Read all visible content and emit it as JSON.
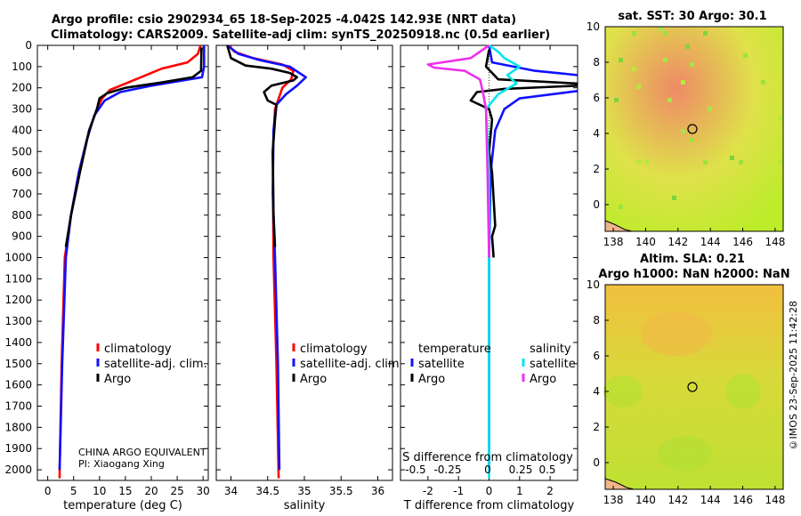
{
  "header": {
    "title_line1": "Argo profile: csio 2902934_65 18-Sep-2025 -4.042S 142.93E (NRT data)",
    "title_line2": "Climatology: CARS2009. Satellite-adj clim: synTS_20250918.nc (0.5d earlier)"
  },
  "sst_map": {
    "title": "sat. SST: 30 Argo: 30.1",
    "xticks": [
      "138",
      "140",
      "142",
      "144",
      "146",
      "148"
    ],
    "yticks": [
      "10",
      "8",
      "6",
      "4",
      "2",
      "0"
    ]
  },
  "sla_map": {
    "title_line1": "Altim. SLA: 0.21",
    "title_line2": "Argo h1000: NaN h2000: NaN",
    "xticks": [
      "138",
      "140",
      "142",
      "144",
      "146",
      "148"
    ],
    "yticks": [
      "10",
      "8",
      "6",
      "4",
      "2",
      "0"
    ]
  },
  "footer": {
    "credit": "©IMOS 23-Sep-2025 11:42:28"
  },
  "colors": {
    "climatology": "#ff0000",
    "satellite": "#1010ff",
    "argo": "#000000",
    "sal_sat": "#00e5ee",
    "sal_argo": "#ee30ee"
  },
  "chart_data": [
    {
      "type": "line",
      "name": "temperature-profile",
      "xlabel": "temperature (deg C)",
      "xlim": [
        -2,
        31
      ],
      "ylim": [
        2050,
        0
      ],
      "xticks": [
        0,
        5,
        10,
        15,
        20,
        25,
        30
      ],
      "yticks": [
        0,
        100,
        200,
        300,
        400,
        500,
        600,
        700,
        800,
        900,
        1000,
        1100,
        1200,
        1300,
        1400,
        1500,
        1600,
        1700,
        1800,
        1900,
        2000
      ],
      "legend": [
        "climatology",
        "satellite-adj. clim.",
        "Argo"
      ],
      "annotation_line1": "CHINA ARGO EQUIVALENT",
      "annotation_line2": "PI: Xiaogang Xing",
      "series": [
        {
          "name": "climatology",
          "color_key": "climatology",
          "points": [
            [
              29.5,
              0
            ],
            [
              29,
              40
            ],
            [
              27,
              80
            ],
            [
              22,
              110
            ],
            [
              18,
              150
            ],
            [
              12,
              210
            ],
            [
              10.5,
              250
            ],
            [
              9.5,
              300
            ],
            [
              8,
              400
            ],
            [
              6,
              600
            ],
            [
              4.5,
              800
            ],
            [
              3.3,
              1000
            ],
            [
              2.7,
              1500
            ],
            [
              2.3,
              2000
            ],
            [
              2.3,
              2040
            ]
          ]
        },
        {
          "name": "satellite-adj. clim.",
          "color_key": "satellite",
          "points": [
            [
              30.2,
              0
            ],
            [
              30.2,
              100
            ],
            [
              29.8,
              150
            ],
            [
              20,
              190
            ],
            [
              14,
              220
            ],
            [
              11,
              260
            ],
            [
              9,
              330
            ],
            [
              7.5,
              450
            ],
            [
              6,
              600
            ],
            [
              4.5,
              800
            ],
            [
              3.5,
              1000
            ],
            [
              2.8,
              1500
            ],
            [
              2.3,
              2000
            ]
          ]
        },
        {
          "name": "Argo",
          "color_key": "argo",
          "points": [
            [
              29.7,
              10
            ],
            [
              29.6,
              120
            ],
            [
              28,
              150
            ],
            [
              22,
              175
            ],
            [
              15,
              200
            ],
            [
              11.5,
              225
            ],
            [
              10,
              250
            ],
            [
              9.5,
              300
            ],
            [
              8,
              400
            ],
            [
              6.2,
              600
            ],
            [
              4.5,
              800
            ],
            [
              3.5,
              950
            ]
          ]
        }
      ]
    },
    {
      "type": "line",
      "name": "salinity-profile",
      "xlabel": "salinity",
      "xlim": [
        33.8,
        36.2
      ],
      "ylim": [
        2050,
        0
      ],
      "xticks": [
        34,
        34.5,
        35,
        35.5,
        36
      ],
      "legend": [
        "climatology",
        "satellite-adj. clim.",
        "Argo"
      ],
      "series": [
        {
          "name": "climatology",
          "color_key": "climatology",
          "points": [
            [
              33.97,
              0
            ],
            [
              34.05,
              30
            ],
            [
              34.3,
              60
            ],
            [
              34.7,
              90
            ],
            [
              34.85,
              120
            ],
            [
              34.82,
              160
            ],
            [
              34.7,
              200
            ],
            [
              34.6,
              300
            ],
            [
              34.57,
              500
            ],
            [
              34.58,
              1000
            ],
            [
              34.62,
              1500
            ],
            [
              34.65,
              2040
            ]
          ]
        },
        {
          "name": "satellite-adj. clim.",
          "color_key": "satellite",
          "points": [
            [
              33.95,
              0
            ],
            [
              34.1,
              40
            ],
            [
              34.4,
              70
            ],
            [
              34.8,
              100
            ],
            [
              35.02,
              150
            ],
            [
              34.9,
              190
            ],
            [
              34.75,
              230
            ],
            [
              34.62,
              280
            ],
            [
              34.58,
              400
            ],
            [
              34.57,
              700
            ],
            [
              34.6,
              1000
            ],
            [
              34.64,
              1500
            ],
            [
              34.66,
              2000
            ]
          ]
        },
        {
          "name": "Argo",
          "color_key": "argo",
          "points": [
            [
              33.95,
              0
            ],
            [
              34,
              60
            ],
            [
              34.2,
              95
            ],
            [
              34.55,
              110
            ],
            [
              34.8,
              130
            ],
            [
              34.9,
              150
            ],
            [
              34.85,
              165
            ],
            [
              34.55,
              190
            ],
            [
              34.45,
              220
            ],
            [
              34.5,
              260
            ],
            [
              34.62,
              280
            ],
            [
              34.6,
              350
            ],
            [
              34.57,
              500
            ],
            [
              34.58,
              800
            ],
            [
              34.6,
              950
            ]
          ]
        }
      ]
    },
    {
      "type": "line",
      "name": "difference-profile",
      "xlabel": "T difference from climatology",
      "xlabel_top": "S difference from climatology",
      "xlim": [
        -2.9,
        2.9
      ],
      "ylim": [
        2050,
        0
      ],
      "xticks": [
        -2,
        -1,
        0,
        1,
        2
      ],
      "xticks_top": [
        "-0.5",
        "-0.25",
        "0",
        "0.25",
        "0.5"
      ],
      "legend_headers": [
        "temperature",
        "salinity"
      ],
      "legend_temperature": [
        "satellite",
        "Argo"
      ],
      "legend_salinity": [
        "satellite",
        "Argo"
      ],
      "series": [
        {
          "name": "T satellite",
          "color_key": "satellite",
          "points": [
            [
              0,
              0
            ],
            [
              0.1,
              80
            ],
            [
              1.5,
              120
            ],
            [
              2.9,
              140
            ]
          ]
        },
        {
          "name": "T satellite deep",
          "color_key": "satellite",
          "points": [
            [
              2.9,
              215
            ],
            [
              1,
              250
            ],
            [
              0.5,
              300
            ],
            [
              0.2,
              400
            ],
            [
              0.05,
              600
            ],
            [
              0,
              1000
            ],
            [
              0,
              2000
            ]
          ]
        },
        {
          "name": "T Argo",
          "color_key": "argo",
          "points": [
            [
              0,
              20
            ],
            [
              -0.1,
              100
            ],
            [
              0.3,
              160
            ],
            [
              2.9,
              180
            ]
          ]
        },
        {
          "name": "T Argo deep",
          "color_key": "argo",
          "points": [
            [
              2.9,
              190
            ],
            [
              0.5,
              205
            ],
            [
              -0.4,
              220
            ],
            [
              -0.6,
              260
            ],
            [
              0,
              300
            ],
            [
              0.1,
              350
            ],
            [
              0,
              500
            ],
            [
              0.1,
              600
            ],
            [
              0.2,
              850
            ],
            [
              0.1,
              900
            ],
            [
              0.15,
              1000
            ]
          ]
        },
        {
          "name": "S satellite",
          "color_key": "sal_sat",
          "points": [
            [
              0,
              0
            ],
            [
              0.3,
              30
            ],
            [
              0.5,
              60
            ],
            [
              1.0,
              100
            ],
            [
              0.6,
              140
            ],
            [
              0.9,
              180
            ],
            [
              0.3,
              230
            ],
            [
              -0.1,
              300
            ],
            [
              0,
              600
            ],
            [
              0,
              1000
            ],
            [
              0,
              2040
            ]
          ]
        },
        {
          "name": "S Argo",
          "color_key": "sal_argo",
          "points": [
            [
              0,
              0
            ],
            [
              -0.6,
              60
            ],
            [
              -2,
              90
            ],
            [
              -1.8,
              105
            ],
            [
              -0.8,
              120
            ],
            [
              -0.3,
              160
            ],
            [
              -0.2,
              220
            ],
            [
              -0.1,
              300
            ],
            [
              -0.05,
              600
            ],
            [
              0,
              1000
            ]
          ]
        }
      ]
    }
  ]
}
